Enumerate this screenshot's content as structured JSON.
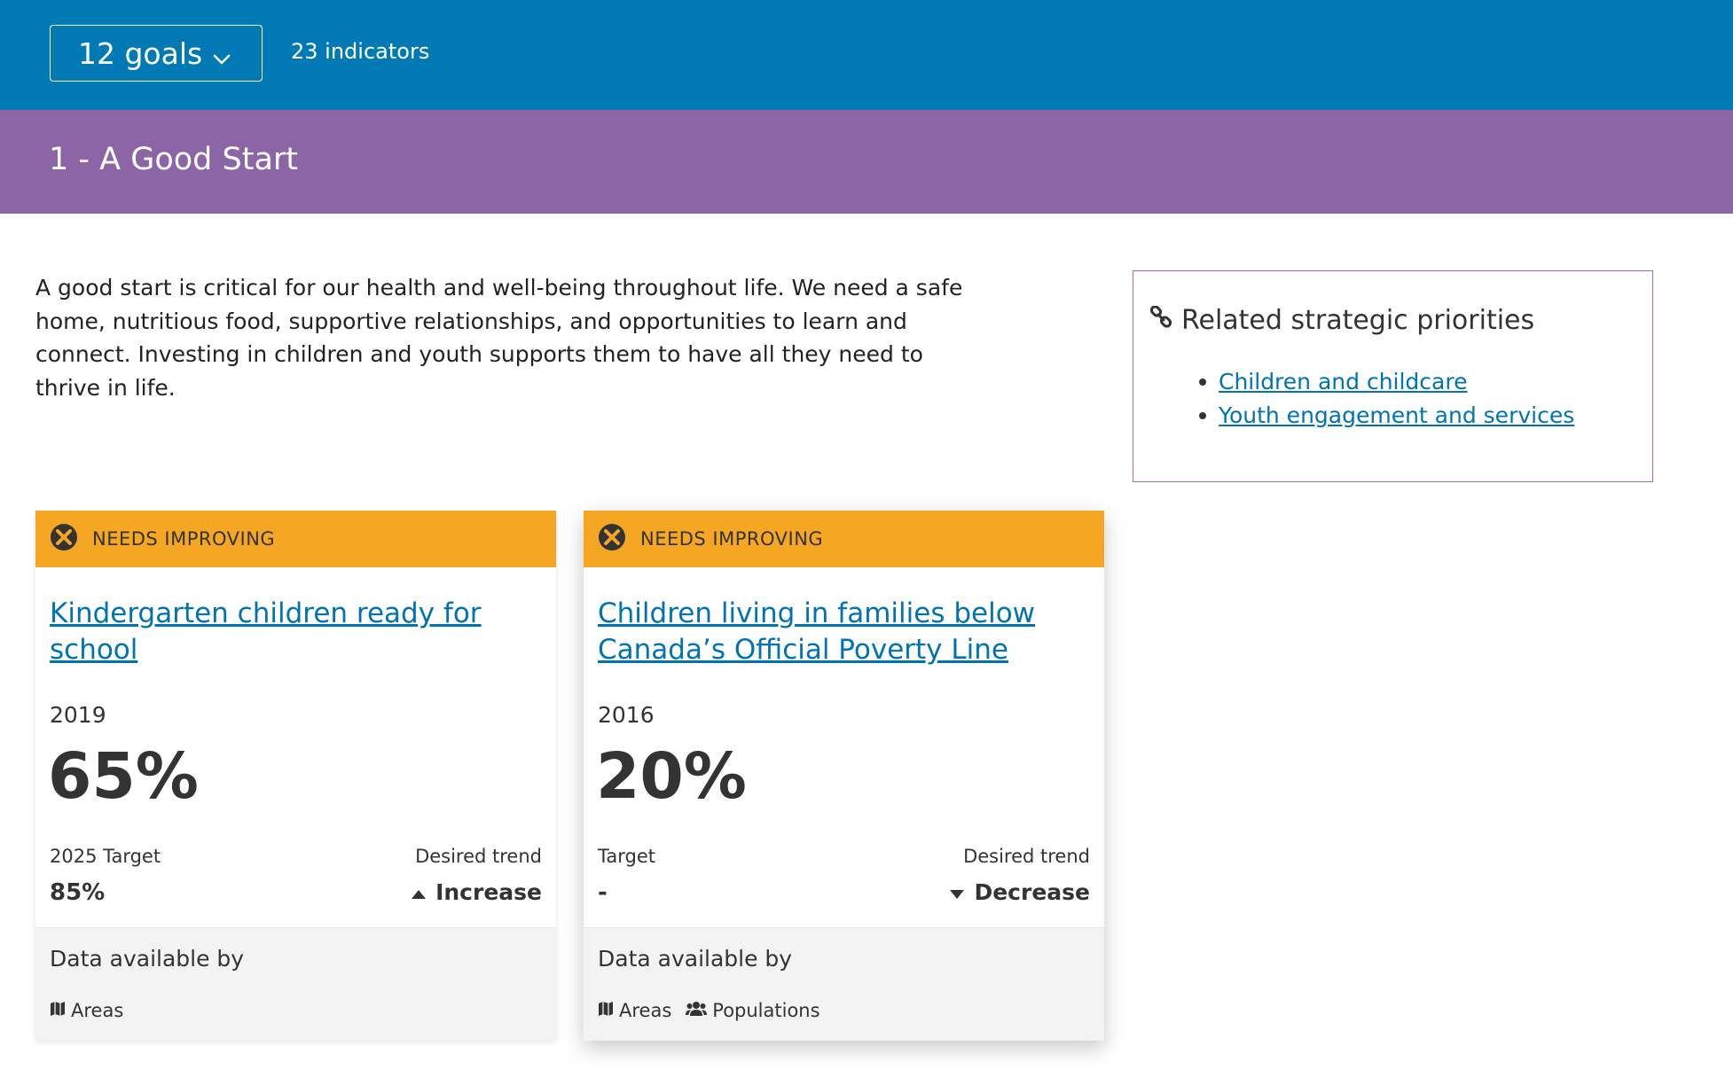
{
  "header": {
    "goals_label": "12 goals",
    "indicators_label": "23 indicators"
  },
  "goal": {
    "title": "1 - A Good Start",
    "color": "#8b65a6",
    "description": "A good start is critical for our health and well-being throughout life. We need a safe home, nutritious food, supportive relationships, and opportunities to learn and connect. Investing in children and youth supports them to have all they need to thrive in life."
  },
  "related": {
    "title": "Related strategic priorities",
    "links": [
      "Children and childcare",
      "Youth engagement and services"
    ]
  },
  "cards": [
    {
      "status": "NEEDS IMPROVING",
      "status_color": "#f5a623",
      "title": "Kindergarten children ready for school",
      "year": "2019",
      "value": "65%",
      "target_label": "2025 Target",
      "target_value": "85%",
      "trend_label": "Desired trend",
      "trend_value": "Increase",
      "trend_icon": "caret-up-icon",
      "available_label": "Data available by",
      "available": [
        "Areas"
      ]
    },
    {
      "status": "NEEDS IMPROVING",
      "status_color": "#f5a623",
      "title": "Children living in families below Canada’s Official Poverty Line",
      "year": "2016",
      "value": "20%",
      "target_label": "Target",
      "target_value": "-",
      "trend_label": "Desired trend",
      "trend_value": "Decrease",
      "trend_icon": "caret-down-icon",
      "available_label": "Data available by",
      "available": [
        "Areas",
        "Populations"
      ]
    }
  ],
  "colors": {
    "header": "#0079b4",
    "link": "#0073b0",
    "related_border": "#9c6fb4"
  }
}
